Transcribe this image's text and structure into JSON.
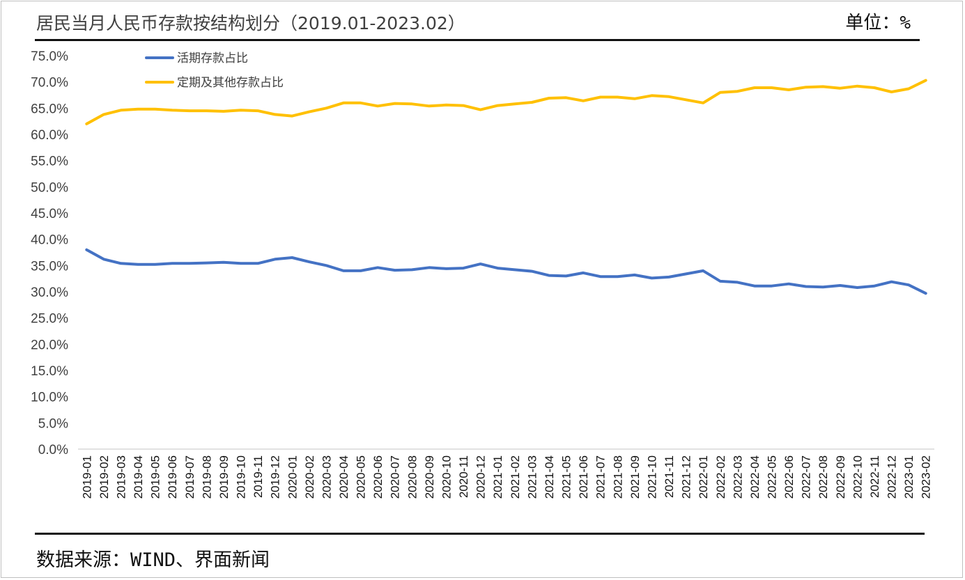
{
  "header": {
    "title": "居民当月人民币存款按结构划分（2019.01-2023.02）",
    "unit": "单位：%"
  },
  "footer": {
    "source": "数据来源：WIND、界面新闻"
  },
  "colors": {
    "demand": "#4472C4",
    "time": "#FFC000",
    "axis": "#d9d9d9",
    "text": "#404040"
  },
  "chart_data": {
    "type": "line",
    "title": "居民当月人民币存款按结构划分（2019.01-2023.02）",
    "xlabel": "",
    "ylabel": "",
    "ylim": [
      0,
      75
    ],
    "ytick_step": 5,
    "ytick_labels": [
      "0.0%",
      "5.0%",
      "10.0%",
      "15.0%",
      "20.0%",
      "25.0%",
      "30.0%",
      "35.0%",
      "40.0%",
      "45.0%",
      "50.0%",
      "55.0%",
      "60.0%",
      "65.0%",
      "70.0%",
      "75.0%"
    ],
    "grid": false,
    "legend_position": "top-left",
    "categories": [
      "2019-01",
      "2019-02",
      "2019-03",
      "2019-04",
      "2019-05",
      "2019-06",
      "2019-07",
      "2019-08",
      "2019-09",
      "2019-10",
      "2019-11",
      "2019-12",
      "2020-01",
      "2020-02",
      "2020-03",
      "2020-04",
      "2020-05",
      "2020-06",
      "2020-07",
      "2020-08",
      "2020-09",
      "2020-10",
      "2020-11",
      "2020-12",
      "2021-01",
      "2021-02",
      "2021-03",
      "2021-04",
      "2021-05",
      "2021-06",
      "2021-07",
      "2021-08",
      "2021-09",
      "2021-10",
      "2021-11",
      "2021-12",
      "2022-01",
      "2022-02",
      "2022-03",
      "2022-04",
      "2022-05",
      "2022-06",
      "2022-07",
      "2022-08",
      "2022-09",
      "2022-10",
      "2022-11",
      "2022-12",
      "2023-01",
      "2023-02"
    ],
    "series": [
      {
        "name": "活期存款占比",
        "color": "#4472C4",
        "values": [
          38.0,
          36.2,
          35.4,
          35.2,
          35.2,
          35.4,
          35.4,
          35.5,
          35.6,
          35.4,
          35.4,
          36.2,
          36.5,
          35.7,
          35.0,
          34.0,
          34.0,
          34.6,
          34.1,
          34.2,
          34.6,
          34.4,
          34.5,
          35.3,
          34.5,
          34.2,
          33.9,
          33.1,
          33.0,
          33.6,
          32.9,
          32.9,
          33.2,
          32.6,
          32.8,
          33.4,
          34.0,
          32.0,
          31.8,
          31.1,
          31.1,
          31.5,
          31.0,
          30.9,
          31.2,
          30.8,
          31.1,
          31.9,
          31.3,
          29.7
        ]
      },
      {
        "name": "定期及其他存款占比",
        "color": "#FFC000",
        "values": [
          62.0,
          63.8,
          64.6,
          64.8,
          64.8,
          64.6,
          64.5,
          64.5,
          64.4,
          64.6,
          64.5,
          63.8,
          63.5,
          64.3,
          65.0,
          66.0,
          66.0,
          65.4,
          65.9,
          65.8,
          65.4,
          65.6,
          65.5,
          64.7,
          65.5,
          65.8,
          66.1,
          66.9,
          67.0,
          66.4,
          67.1,
          67.1,
          66.8,
          67.4,
          67.2,
          66.6,
          66.0,
          68.0,
          68.2,
          68.9,
          68.9,
          68.5,
          69.0,
          69.1,
          68.8,
          69.2,
          68.9,
          68.1,
          68.7,
          70.3
        ]
      }
    ]
  }
}
